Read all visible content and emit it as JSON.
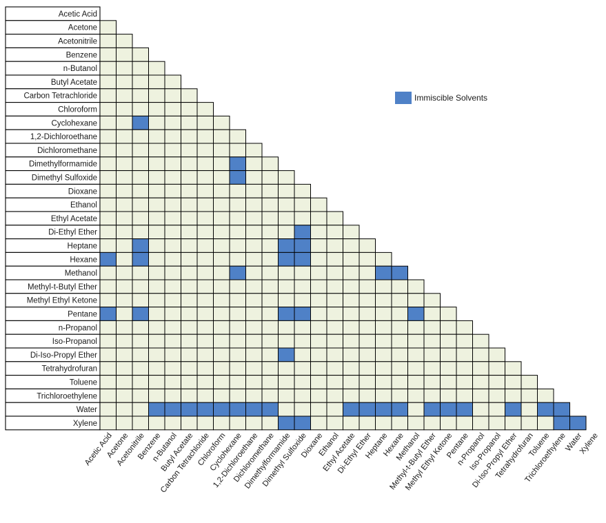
{
  "chart_data": {
    "type": "heatmap",
    "title": "",
    "solvents": [
      "Acetic Acid",
      "Acetone",
      "Acetonitrile",
      "Benzene",
      "n-Butanol",
      "Butyl Acetate",
      "Carbon Tetrachloride",
      "Chloroform",
      "Cyclohexane",
      "1,2-Dichloroethane",
      "Dichloromethane",
      "Dimethylformamide",
      "Dimethyl Sulfoxide",
      "Dioxane",
      "Ethanol",
      "Ethyl Acetate",
      "Di-Ethyl Ether",
      "Heptane",
      "Hexane",
      "Methanol",
      "Methyl-t-Butyl Ether",
      "Methyl Ethyl Ketone",
      "Pentane",
      "n-Propanol",
      "Iso-Propanol",
      "Di-Iso-Propyl Ether",
      "Tetrahydrofuran",
      "Toluene",
      "Trichloroethylene",
      "Water",
      "Xylene"
    ],
    "immiscible_pairs": [
      [
        "Cyclohexane",
        "Acetonitrile"
      ],
      [
        "Dimethylformamide",
        "Cyclohexane"
      ],
      [
        "Dimethyl Sulfoxide",
        "Cyclohexane"
      ],
      [
        "Di-Ethyl Ether",
        "Dimethyl Sulfoxide"
      ],
      [
        "Heptane",
        "Acetonitrile"
      ],
      [
        "Heptane",
        "Dimethylformamide"
      ],
      [
        "Heptane",
        "Dimethyl Sulfoxide"
      ],
      [
        "Hexane",
        "Acetic Acid"
      ],
      [
        "Hexane",
        "Acetonitrile"
      ],
      [
        "Hexane",
        "Dimethylformamide"
      ],
      [
        "Hexane",
        "Dimethyl Sulfoxide"
      ],
      [
        "Methanol",
        "Cyclohexane"
      ],
      [
        "Methanol",
        "Heptane"
      ],
      [
        "Methanol",
        "Hexane"
      ],
      [
        "Pentane",
        "Acetic Acid"
      ],
      [
        "Pentane",
        "Acetonitrile"
      ],
      [
        "Pentane",
        "Dimethylformamide"
      ],
      [
        "Pentane",
        "Dimethyl Sulfoxide"
      ],
      [
        "Pentane",
        "Methanol"
      ],
      [
        "Di-Iso-Propyl Ether",
        "Dimethylformamide"
      ],
      [
        "Water",
        "Benzene"
      ],
      [
        "Water",
        "n-Butanol"
      ],
      [
        "Water",
        "Butyl Acetate"
      ],
      [
        "Water",
        "Carbon Tetrachloride"
      ],
      [
        "Water",
        "Chloroform"
      ],
      [
        "Water",
        "Cyclohexane"
      ],
      [
        "Water",
        "1,2-Dichloroethane"
      ],
      [
        "Water",
        "Dichloromethane"
      ],
      [
        "Water",
        "Ethyl Acetate"
      ],
      [
        "Water",
        "Di-Ethyl Ether"
      ],
      [
        "Water",
        "Heptane"
      ],
      [
        "Water",
        "Hexane"
      ],
      [
        "Water",
        "Methyl-t-Butyl Ether"
      ],
      [
        "Water",
        "Methyl Ethyl Ketone"
      ],
      [
        "Water",
        "Pentane"
      ],
      [
        "Water",
        "Di-Iso-Propyl Ether"
      ],
      [
        "Water",
        "Toluene"
      ],
      [
        "Water",
        "Trichloroethylene"
      ],
      [
        "Xylene",
        "Dimethylformamide"
      ],
      [
        "Xylene",
        "Dimethyl Sulfoxide"
      ],
      [
        "Xylene",
        "Trichloroethylene"
      ],
      [
        "Xylene",
        "Water"
      ]
    ],
    "legend": [
      {
        "label": "Immiscible Solvents",
        "color": "#4f81c7"
      }
    ],
    "legend_position": "top-right",
    "colors": {
      "miscible_fill": "#eef2df",
      "immiscible_fill": "#4f81c7",
      "grid_line": "#000000"
    }
  }
}
